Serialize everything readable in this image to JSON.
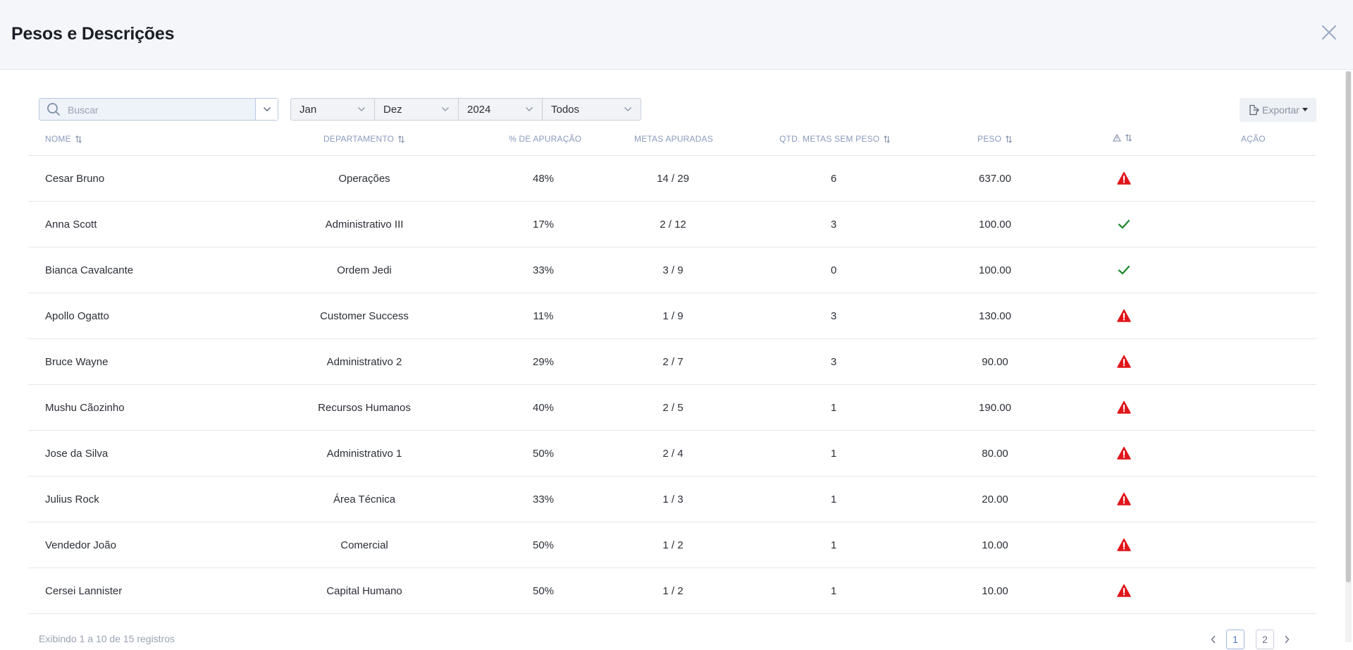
{
  "modal": {
    "title": "Pesos e Descrições"
  },
  "toolbar": {
    "search_placeholder": "Buscar",
    "filters": {
      "start_month": "Jan",
      "end_month": "Dez",
      "year": "2024",
      "scope": "Todos"
    },
    "export_label": "Exportar"
  },
  "table": {
    "headers": {
      "nome": "NOME",
      "departamento": "DEPARTAMENTO",
      "apuracao": "% DE APURAÇÃO",
      "metas": "METAS APURADAS",
      "qtd": "QTD. METAS SEM PESO",
      "peso": "PESO",
      "acao": "AÇÃO"
    },
    "rows": [
      {
        "nome": "Cesar Bruno",
        "departamento": "Operações",
        "apuracao": "48%",
        "metas": "14 / 29",
        "qtd": "6",
        "peso": "637.00",
        "status": "warning-icon"
      },
      {
        "nome": "Anna Scott",
        "departamento": "Administrativo III",
        "apuracao": "17%",
        "metas": "2 / 12",
        "qtd": "3",
        "peso": "100.00",
        "status": "check-icon"
      },
      {
        "nome": "Bianca Cavalcante",
        "departamento": "Ordem Jedi",
        "apuracao": "33%",
        "metas": "3 / 9",
        "qtd": "0",
        "peso": "100.00",
        "status": "check-icon"
      },
      {
        "nome": "Apollo Ogatto",
        "departamento": "Customer Success",
        "apuracao": "11%",
        "metas": "1 / 9",
        "qtd": "3",
        "peso": "130.00",
        "status": "warning-icon"
      },
      {
        "nome": "Bruce Wayne",
        "departamento": "Administrativo 2",
        "apuracao": "29%",
        "metas": "2 / 7",
        "qtd": "3",
        "peso": "90.00",
        "status": "warning-icon"
      },
      {
        "nome": "Mushu Cãozinho",
        "departamento": "Recursos Humanos",
        "apuracao": "40%",
        "metas": "2 / 5",
        "qtd": "1",
        "peso": "190.00",
        "status": "warning-icon"
      },
      {
        "nome": "Jose da Silva",
        "departamento": "Administrativo 1",
        "apuracao": "50%",
        "metas": "2 / 4",
        "qtd": "1",
        "peso": "80.00",
        "status": "warning-icon"
      },
      {
        "nome": "Julius Rock",
        "departamento": "Área Técnica",
        "apuracao": "33%",
        "metas": "1 / 3",
        "qtd": "1",
        "peso": "20.00",
        "status": "warning-icon"
      },
      {
        "nome": "Vendedor João",
        "departamento": "Comercial",
        "apuracao": "50%",
        "metas": "1 / 2",
        "qtd": "1",
        "peso": "10.00",
        "status": "warning-icon"
      },
      {
        "nome": "Cersei Lannister",
        "departamento": "Capital Humano",
        "apuracao": "50%",
        "metas": "1 / 2",
        "qtd": "1",
        "peso": "10.00",
        "status": "warning-icon"
      }
    ]
  },
  "footer": {
    "info": "Exibindo 1 a 10 de 15 registros",
    "pages": [
      "1",
      "2"
    ],
    "current_page": "1"
  },
  "colors": {
    "warning": "#e0161b",
    "ok": "#1f8a2f",
    "accent": "#4b74c9"
  }
}
